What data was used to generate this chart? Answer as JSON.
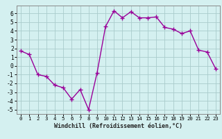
{
  "x": [
    0,
    1,
    2,
    3,
    4,
    5,
    6,
    7,
    8,
    9,
    10,
    11,
    12,
    13,
    14,
    15,
    16,
    17,
    18,
    19,
    20,
    21,
    22,
    23
  ],
  "y": [
    1.7,
    1.3,
    -1.0,
    -1.2,
    -2.2,
    -2.5,
    -3.8,
    -2.7,
    -5.0,
    -0.8,
    4.5,
    6.3,
    5.5,
    6.2,
    5.5,
    5.5,
    5.6,
    4.4,
    4.2,
    3.7,
    4.0,
    1.8,
    1.6,
    -0.3
  ],
  "line_color": "#990099",
  "marker": "+",
  "marker_size": 4,
  "marker_linewidth": 1.0,
  "line_width": 1.0,
  "bg_color": "#d4f0f0",
  "grid_color": "#aacccc",
  "xlabel": "Windchill (Refroidissement éolien,°C)",
  "xlim_lo": -0.5,
  "xlim_hi": 23.5,
  "ylim_lo": -5.5,
  "ylim_hi": 6.9,
  "xticks": [
    0,
    1,
    2,
    3,
    4,
    5,
    6,
    7,
    8,
    9,
    10,
    11,
    12,
    13,
    14,
    15,
    16,
    17,
    18,
    19,
    20,
    21,
    22,
    23
  ],
  "yticks": [
    -5,
    -4,
    -3,
    -2,
    -1,
    0,
    1,
    2,
    3,
    4,
    5,
    6
  ],
  "xlabel_fontsize": 6.0,
  "tick_fontsize_x": 5.2,
  "tick_fontsize_y": 5.8
}
